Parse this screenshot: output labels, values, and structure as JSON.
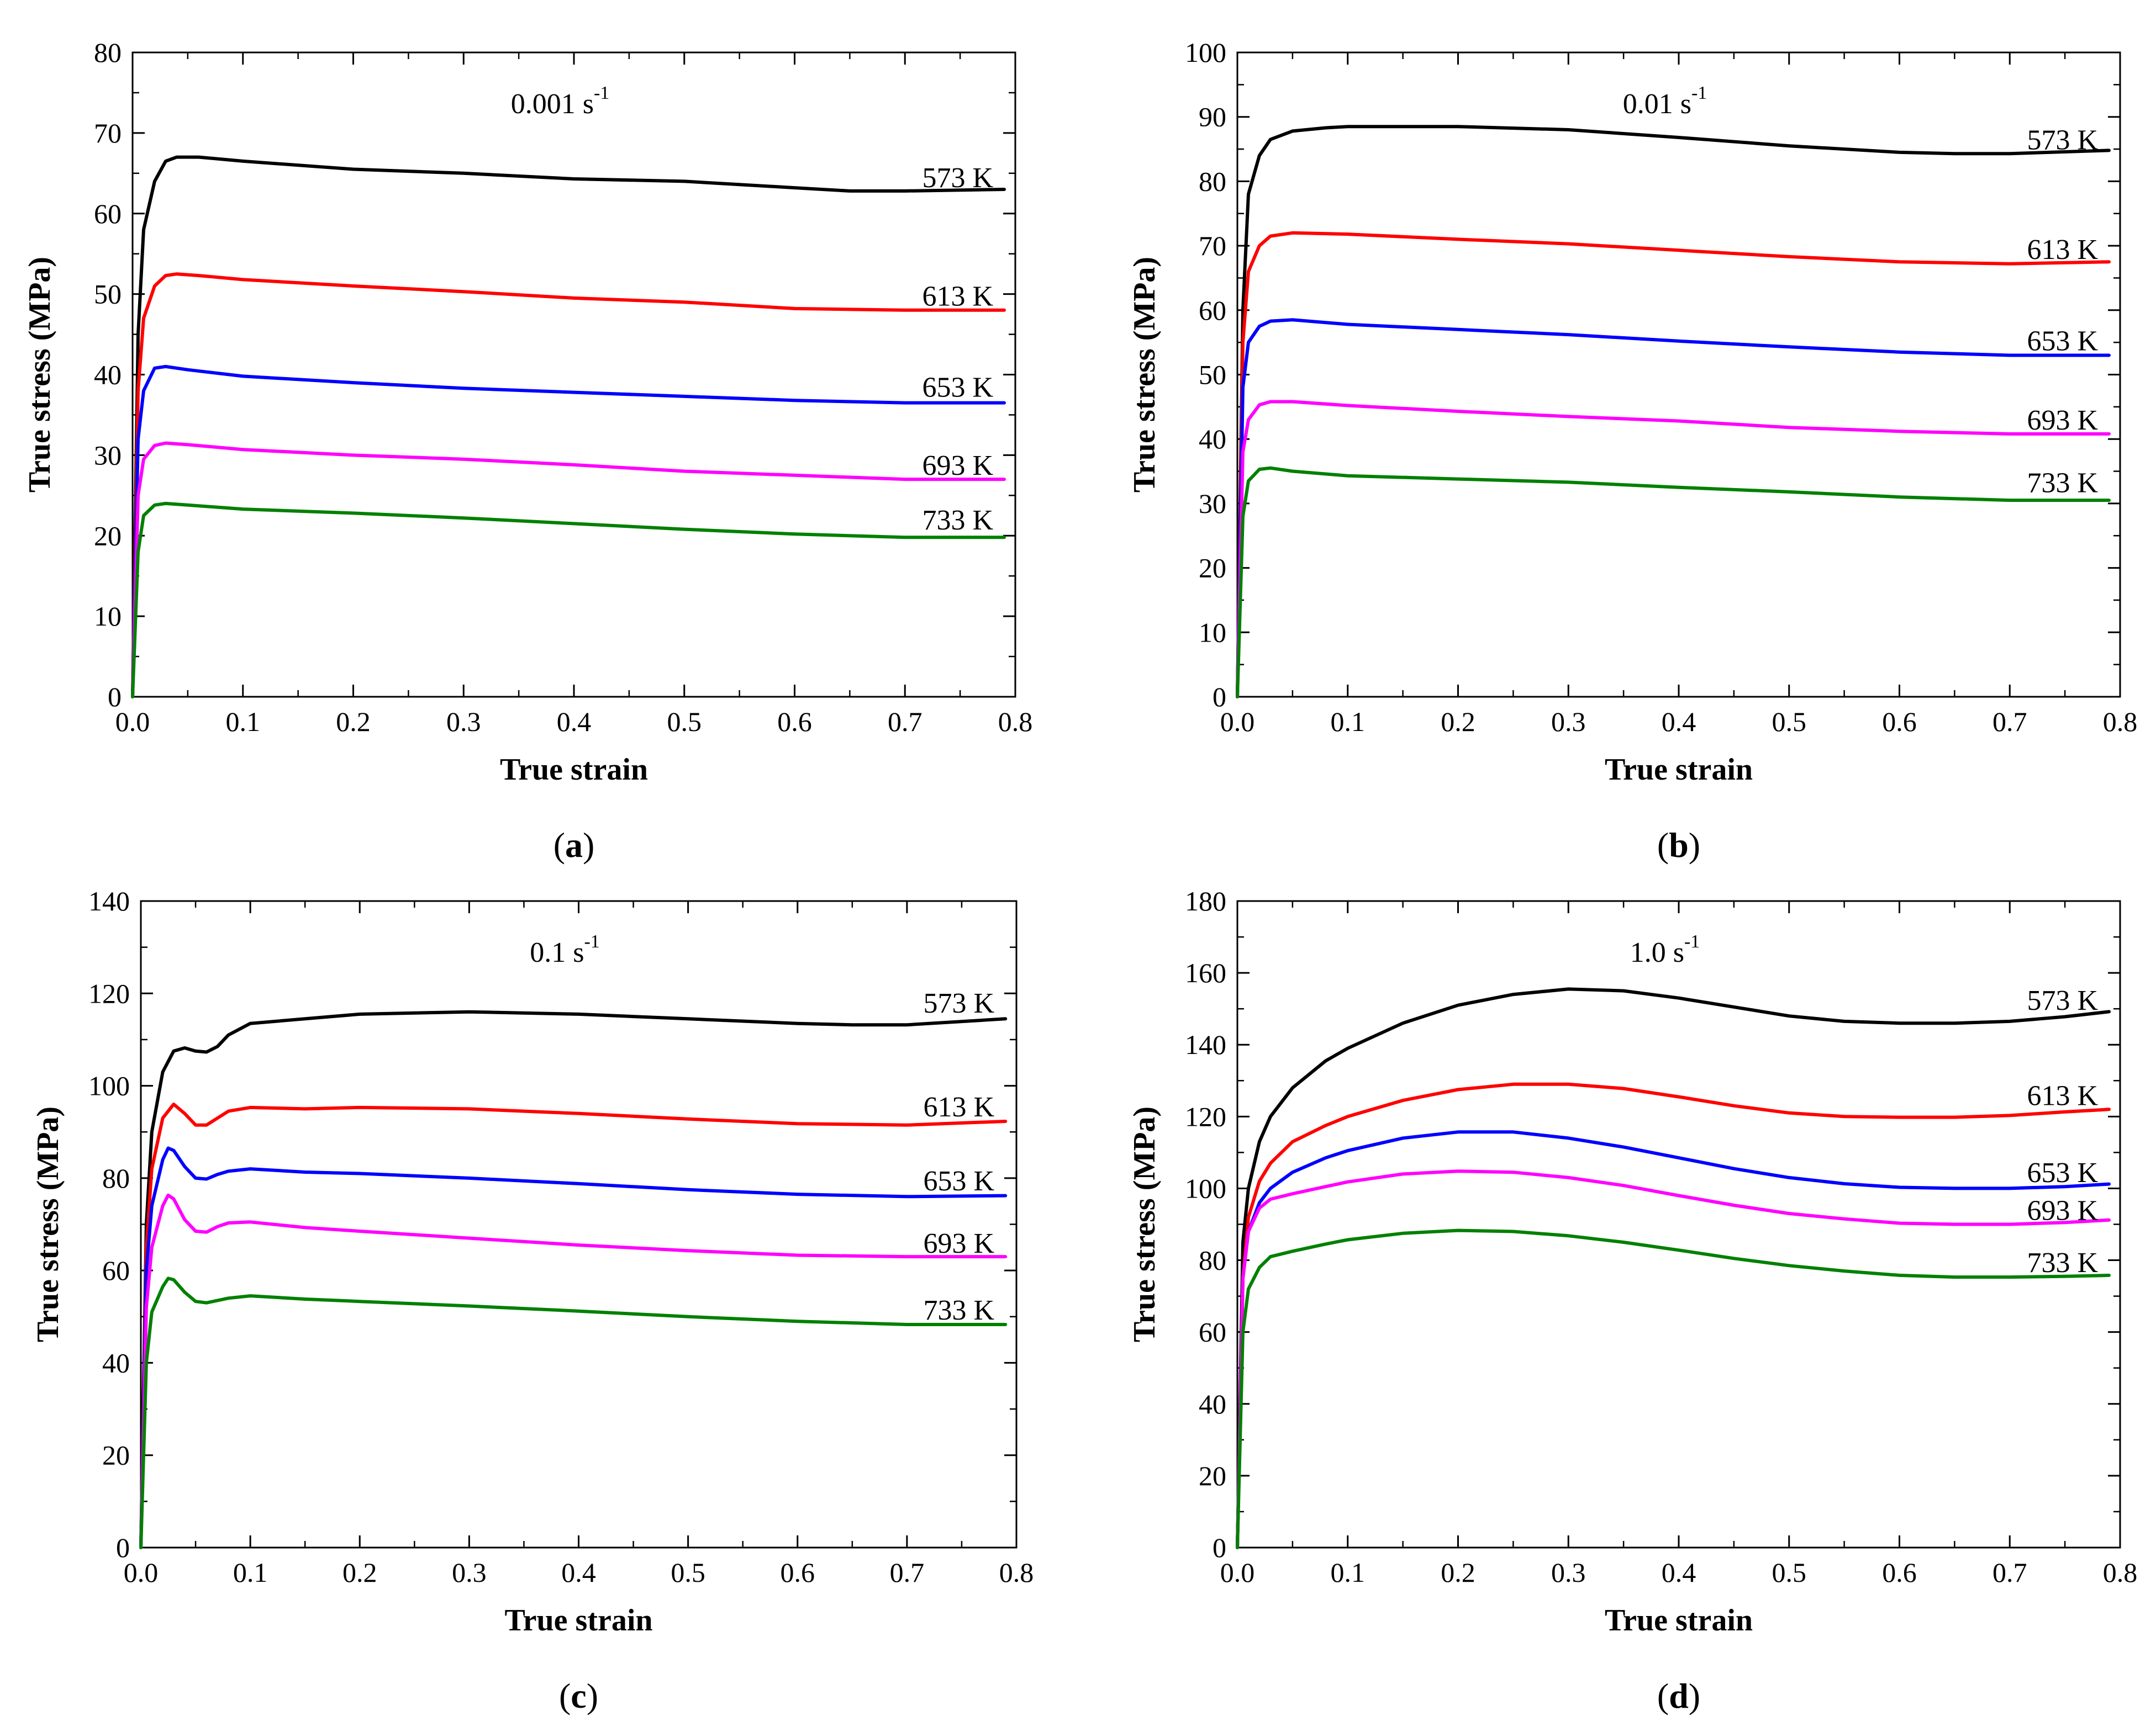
{
  "colors": {
    "573 K": "#000000",
    "613 K": "#ff0000",
    "653 K": "#0000ff",
    "693 K": "#ff00ff",
    "733 K": "#008000",
    "axis": "#000000",
    "background": "#ffffff"
  },
  "chart_data": [
    {
      "type": "line",
      "panel_label": "a",
      "rate_label": "0.001",
      "rate_unit": "s",
      "rate_exponent": "-1",
      "xlabel": "True strain",
      "ylabel": "True stress (MPa)",
      "xlim": [
        0.0,
        0.8
      ],
      "ylim": [
        0,
        80
      ],
      "xticks": [
        "0.0",
        "0.1",
        "0.2",
        "0.3",
        "0.4",
        "0.5",
        "0.6",
        "0.7",
        "0.8"
      ],
      "yticks": [
        "0",
        "10",
        "20",
        "30",
        "40",
        "50",
        "60",
        "70",
        "80"
      ],
      "grid": false,
      "series": [
        {
          "name": "573 K",
          "x": [
            0,
            0.005,
            0.01,
            0.02,
            0.03,
            0.04,
            0.06,
            0.1,
            0.2,
            0.3,
            0.4,
            0.5,
            0.6,
            0.65,
            0.7,
            0.79
          ],
          "y": [
            0,
            45,
            58,
            64,
            66.5,
            67,
            67,
            66.5,
            65.5,
            65,
            64.3,
            64,
            63.2,
            62.8,
            62.8,
            63
          ]
        },
        {
          "name": "613 K",
          "x": [
            0,
            0.005,
            0.01,
            0.02,
            0.03,
            0.04,
            0.06,
            0.1,
            0.2,
            0.3,
            0.4,
            0.5,
            0.6,
            0.7,
            0.79
          ],
          "y": [
            0,
            38,
            47,
            51,
            52.3,
            52.5,
            52.3,
            51.8,
            51,
            50.3,
            49.5,
            49,
            48.2,
            48,
            48
          ]
        },
        {
          "name": "653 K",
          "x": [
            0,
            0.005,
            0.01,
            0.02,
            0.03,
            0.05,
            0.1,
            0.2,
            0.3,
            0.4,
            0.5,
            0.6,
            0.7,
            0.79
          ],
          "y": [
            0,
            32,
            38,
            40.8,
            41,
            40.6,
            39.8,
            39,
            38.3,
            37.8,
            37.3,
            36.8,
            36.5,
            36.5
          ]
        },
        {
          "name": "693 K",
          "x": [
            0,
            0.005,
            0.01,
            0.02,
            0.03,
            0.05,
            0.1,
            0.2,
            0.3,
            0.4,
            0.5,
            0.6,
            0.7,
            0.79
          ],
          "y": [
            0,
            25,
            29.5,
            31.2,
            31.5,
            31.3,
            30.7,
            30,
            29.5,
            28.8,
            28,
            27.5,
            27,
            27
          ]
        },
        {
          "name": "733 K",
          "x": [
            0,
            0.005,
            0.01,
            0.02,
            0.03,
            0.05,
            0.1,
            0.2,
            0.3,
            0.4,
            0.5,
            0.6,
            0.7,
            0.79
          ],
          "y": [
            0,
            18,
            22.5,
            23.8,
            24,
            23.8,
            23.3,
            22.8,
            22.2,
            21.5,
            20.8,
            20.2,
            19.8,
            19.8
          ]
        }
      ]
    },
    {
      "type": "line",
      "panel_label": "b",
      "rate_label": "0.01",
      "rate_unit": "s",
      "rate_exponent": "-1",
      "xlabel": "True strain",
      "ylabel": "True stress (MPa)",
      "xlim": [
        0.0,
        0.8
      ],
      "ylim": [
        0,
        100
      ],
      "xticks": [
        "0.0",
        "0.1",
        "0.2",
        "0.3",
        "0.4",
        "0.5",
        "0.6",
        "0.7",
        "0.8"
      ],
      "yticks": [
        "0",
        "10",
        "20",
        "30",
        "40",
        "50",
        "60",
        "70",
        "80",
        "90",
        "100"
      ],
      "grid": false,
      "series": [
        {
          "name": "573 K",
          "x": [
            0,
            0.005,
            0.01,
            0.02,
            0.03,
            0.05,
            0.08,
            0.1,
            0.2,
            0.3,
            0.4,
            0.5,
            0.6,
            0.65,
            0.7,
            0.79
          ],
          "y": [
            0,
            60,
            78,
            84,
            86.5,
            87.8,
            88.3,
            88.5,
            88.5,
            88,
            86.8,
            85.5,
            84.5,
            84.3,
            84.3,
            84.8
          ]
        },
        {
          "name": "613 K",
          "x": [
            0,
            0.005,
            0.01,
            0.02,
            0.03,
            0.05,
            0.1,
            0.2,
            0.3,
            0.4,
            0.5,
            0.6,
            0.7,
            0.79
          ],
          "y": [
            0,
            55,
            66,
            70,
            71.5,
            72,
            71.8,
            71,
            70.3,
            69.3,
            68.3,
            67.5,
            67.2,
            67.5
          ]
        },
        {
          "name": "653 K",
          "x": [
            0,
            0.005,
            0.01,
            0.02,
            0.03,
            0.05,
            0.1,
            0.2,
            0.3,
            0.4,
            0.5,
            0.6,
            0.7,
            0.79
          ],
          "y": [
            0,
            48,
            55,
            57.5,
            58.3,
            58.5,
            57.8,
            57,
            56.2,
            55.2,
            54.3,
            53.5,
            53,
            53
          ]
        },
        {
          "name": "693 K",
          "x": [
            0,
            0.005,
            0.01,
            0.02,
            0.03,
            0.05,
            0.1,
            0.2,
            0.3,
            0.4,
            0.5,
            0.6,
            0.7,
            0.79
          ],
          "y": [
            0,
            38,
            43,
            45.3,
            45.8,
            45.8,
            45.2,
            44.3,
            43.5,
            42.8,
            41.8,
            41.2,
            40.8,
            40.8
          ]
        },
        {
          "name": "733 K",
          "x": [
            0,
            0.005,
            0.01,
            0.02,
            0.03,
            0.05,
            0.1,
            0.2,
            0.3,
            0.4,
            0.5,
            0.6,
            0.7,
            0.79
          ],
          "y": [
            0,
            28,
            33.5,
            35.3,
            35.5,
            35,
            34.3,
            33.8,
            33.3,
            32.5,
            31.8,
            31,
            30.5,
            30.5
          ]
        }
      ]
    },
    {
      "type": "line",
      "panel_label": "c",
      "rate_label": "0.1",
      "rate_unit": "s",
      "rate_exponent": "-1",
      "xlabel": "True strain",
      "ylabel": "True stress (MPa)",
      "xlim": [
        0.0,
        0.8
      ],
      "ylim": [
        0,
        140
      ],
      "xticks": [
        "0.0",
        "0.1",
        "0.2",
        "0.3",
        "0.4",
        "0.5",
        "0.6",
        "0.7",
        "0.8"
      ],
      "yticks": [
        "0",
        "20",
        "40",
        "60",
        "80",
        "100",
        "120",
        "140"
      ],
      "grid": false,
      "series": [
        {
          "name": "573 K",
          "x": [
            0,
            0.005,
            0.01,
            0.02,
            0.03,
            0.04,
            0.05,
            0.06,
            0.07,
            0.08,
            0.1,
            0.15,
            0.2,
            0.3,
            0.4,
            0.5,
            0.6,
            0.65,
            0.7,
            0.79
          ],
          "y": [
            0,
            70,
            90,
            103,
            107.5,
            108.2,
            107.5,
            107.3,
            108.5,
            111,
            113.5,
            114.5,
            115.5,
            116,
            115.5,
            114.5,
            113.5,
            113.2,
            113.2,
            114.5
          ]
        },
        {
          "name": "613 K",
          "x": [
            0,
            0.005,
            0.01,
            0.02,
            0.03,
            0.04,
            0.05,
            0.06,
            0.07,
            0.08,
            0.1,
            0.15,
            0.2,
            0.3,
            0.4,
            0.5,
            0.6,
            0.7,
            0.79
          ],
          "y": [
            0,
            65,
            82,
            93,
            96,
            94,
            91.5,
            91.5,
            93,
            94.5,
            95.3,
            95,
            95.3,
            95,
            94,
            92.8,
            91.8,
            91.5,
            92.3
          ]
        },
        {
          "name": "653 K",
          "x": [
            0,
            0.005,
            0.01,
            0.02,
            0.025,
            0.03,
            0.04,
            0.05,
            0.06,
            0.07,
            0.08,
            0.1,
            0.15,
            0.2,
            0.3,
            0.4,
            0.5,
            0.6,
            0.7,
            0.79
          ],
          "y": [
            0,
            60,
            74,
            84,
            86.5,
            86,
            82.5,
            80,
            79.8,
            80.8,
            81.5,
            82,
            81.3,
            81,
            80,
            78.8,
            77.5,
            76.5,
            76,
            76.2
          ]
        },
        {
          "name": "693 K",
          "x": [
            0,
            0.005,
            0.01,
            0.02,
            0.025,
            0.03,
            0.04,
            0.05,
            0.06,
            0.07,
            0.08,
            0.1,
            0.15,
            0.2,
            0.3,
            0.4,
            0.5,
            0.6,
            0.7,
            0.79
          ],
          "y": [
            0,
            52,
            65,
            74,
            76.3,
            75.5,
            71,
            68.5,
            68.3,
            69.5,
            70.3,
            70.5,
            69.3,
            68.5,
            67,
            65.5,
            64.3,
            63.3,
            63,
            63
          ]
        },
        {
          "name": "733 K",
          "x": [
            0,
            0.005,
            0.01,
            0.02,
            0.025,
            0.03,
            0.04,
            0.05,
            0.06,
            0.08,
            0.1,
            0.15,
            0.2,
            0.3,
            0.4,
            0.5,
            0.6,
            0.7,
            0.79
          ],
          "y": [
            0,
            40,
            51,
            56.5,
            58.3,
            58,
            55.3,
            53.3,
            53,
            54,
            54.5,
            53.8,
            53.3,
            52.3,
            51.2,
            50,
            49,
            48.3,
            48.3
          ]
        }
      ]
    },
    {
      "type": "line",
      "panel_label": "d",
      "rate_label": "1.0",
      "rate_unit": "s",
      "rate_exponent": "-1",
      "xlabel": "True strain",
      "ylabel": "True stress (MPa)",
      "xlim": [
        0.0,
        0.8
      ],
      "ylim": [
        0,
        180
      ],
      "xticks": [
        "0.0",
        "0.1",
        "0.2",
        "0.3",
        "0.4",
        "0.5",
        "0.6",
        "0.7",
        "0.8"
      ],
      "yticks": [
        "0",
        "20",
        "40",
        "60",
        "80",
        "100",
        "120",
        "140",
        "160",
        "180"
      ],
      "grid": false,
      "series": [
        {
          "name": "573 K",
          "x": [
            0,
            0.005,
            0.01,
            0.02,
            0.03,
            0.05,
            0.08,
            0.1,
            0.15,
            0.2,
            0.25,
            0.3,
            0.35,
            0.4,
            0.45,
            0.5,
            0.55,
            0.6,
            0.65,
            0.7,
            0.75,
            0.79
          ],
          "y": [
            0,
            85,
            100,
            113,
            120,
            128,
            135.5,
            139,
            146,
            151,
            154,
            155.5,
            155,
            153,
            150.5,
            148,
            146.5,
            146,
            146,
            146.5,
            147.8,
            149.2
          ]
        },
        {
          "name": "613 K",
          "x": [
            0,
            0.005,
            0.01,
            0.02,
            0.03,
            0.05,
            0.08,
            0.1,
            0.15,
            0.2,
            0.25,
            0.3,
            0.35,
            0.4,
            0.45,
            0.5,
            0.55,
            0.6,
            0.65,
            0.7,
            0.75,
            0.79
          ],
          "y": [
            0,
            75,
            92,
            102,
            107,
            113,
            117.5,
            120,
            124.5,
            127.5,
            129,
            129,
            127.8,
            125.5,
            123,
            121,
            120,
            119.8,
            119.8,
            120.3,
            121.3,
            122
          ]
        },
        {
          "name": "653 K",
          "x": [
            0,
            0.005,
            0.01,
            0.02,
            0.03,
            0.05,
            0.08,
            0.1,
            0.15,
            0.2,
            0.25,
            0.3,
            0.35,
            0.4,
            0.45,
            0.5,
            0.55,
            0.6,
            0.65,
            0.7,
            0.75,
            0.79
          ],
          "y": [
            0,
            75,
            88,
            96,
            100,
            104.5,
            108.5,
            110.5,
            114,
            115.7,
            115.7,
            114,
            111.5,
            108.5,
            105.5,
            103,
            101.3,
            100.3,
            100,
            100,
            100.5,
            101.2
          ]
        },
        {
          "name": "693 K",
          "x": [
            0,
            0.005,
            0.01,
            0.02,
            0.03,
            0.05,
            0.08,
            0.1,
            0.15,
            0.2,
            0.25,
            0.3,
            0.35,
            0.4,
            0.45,
            0.5,
            0.55,
            0.6,
            0.65,
            0.7,
            0.75,
            0.79
          ],
          "y": [
            0,
            75,
            88,
            94.5,
            97,
            98.5,
            100.5,
            101.8,
            104,
            104.8,
            104.5,
            103,
            100.8,
            98,
            95.3,
            93,
            91.5,
            90.3,
            90,
            90,
            90.5,
            91.2
          ]
        },
        {
          "name": "733 K",
          "x": [
            0,
            0.005,
            0.01,
            0.02,
            0.03,
            0.05,
            0.08,
            0.1,
            0.15,
            0.2,
            0.25,
            0.3,
            0.35,
            0.4,
            0.45,
            0.5,
            0.55,
            0.6,
            0.65,
            0.7,
            0.75,
            0.79
          ],
          "y": [
            0,
            60,
            72,
            78,
            81,
            82.5,
            84.5,
            85.7,
            87.5,
            88.3,
            88,
            86.8,
            85,
            82.8,
            80.5,
            78.5,
            77,
            75.8,
            75.3,
            75.3,
            75.5,
            75.8
          ]
        }
      ]
    }
  ],
  "series_label_values": {
    "a": {
      "573 K": 64.5,
      "613 K": 49.8,
      "653 K": 38.5,
      "693 K": 28.8,
      "733 K": 22.0
    },
    "b": {
      "573 K": 86.5,
      "613 K": 69.5,
      "653 K": 55.3,
      "693 K": 43.0,
      "733 K": 33.3
    },
    "c": {
      "573 K": 118.0,
      "613 K": 95.5,
      "653 K": 79.5,
      "693 K": 66.0,
      "733 K": 51.5
    },
    "d": {
      "573 K": 152.5,
      "613 K": 126.0,
      "653 K": 104.5,
      "693 K": 94.0,
      "733 K": 79.5
    }
  }
}
